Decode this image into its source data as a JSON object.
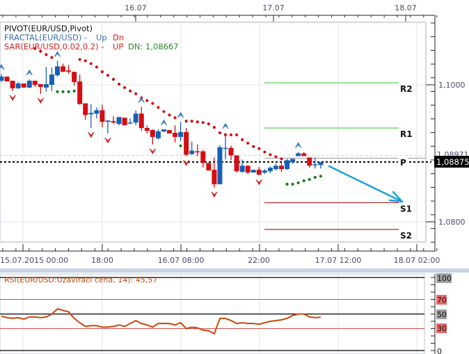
{
  "legend": {
    "pivot": "PIVOT(EUR/USD,Pivot)",
    "fractal": "FRACTAL(EUR/USD) -",
    "fractal_up": "Up",
    "fractal_dn": "Dn",
    "sar": "SAR(EUR/USD,0.02,0.2) -",
    "sar_up": "UP",
    "sar_dn": "DN: 1,08667"
  },
  "top_axis": [
    "16.07",
    "17.07",
    "18.07"
  ],
  "bottom_axis": [
    "15.07.2015 00:00",
    "18:00",
    "16.07 08:00",
    "22:00",
    "17.07 12:00",
    "18.07 02:00"
  ],
  "price_axis": {
    "labels": [
      "1,1000",
      "1,0800"
    ],
    "ref_label": "1,08971",
    "current_label": "1,08875"
  },
  "pivot_labels": {
    "R2": "R2",
    "R1": "R1",
    "P": "P",
    "S1": "S1",
    "S2": "S2"
  },
  "rsi": {
    "title": "RSI(EUR/USD:Uzavírací cena, 14): 45,57",
    "levels": [
      "100",
      "70",
      "50",
      "30",
      "0"
    ]
  },
  "colors": {
    "up": "#1560b8",
    "down": "#d40d12",
    "sar_down": "#d40d12",
    "sar_up": "#1a7a1a",
    "rsi": "#c8480a",
    "arrow": "#1aa0dc",
    "r_lines": "#44cc44",
    "s_lines": "#b02020"
  },
  "chart_data": [
    {
      "type": "candlestick",
      "title": "EUR/USD",
      "ylim": [
        1.077,
        1.1105
      ],
      "ohlc": [
        [
          1.1006,
          1.1016,
          1.1004,
          1.1012
        ],
        [
          1.1012,
          1.1012,
          1.1005,
          1.1005
        ],
        [
          1.1006,
          1.1006,
          1.0991,
          1.0995
        ],
        [
          1.0995,
          1.1004,
          1.0994,
          1.1002
        ],
        [
          1.1002,
          1.1002,
          1.0996,
          1.0996
        ],
        [
          1.0996,
          1.1008,
          1.0995,
          1.1006
        ],
        [
          1.1006,
          1.1006,
          1.0997,
          1.1
        ],
        [
          1.1001,
          1.1001,
          1.0987,
          1.0997
        ],
        [
          1.0996,
          1.1026,
          1.099,
          1.1001
        ],
        [
          1.1,
          1.1025,
          1.0991,
          1.1015
        ],
        [
          1.1014,
          1.1035,
          1.1012,
          1.1027
        ],
        [
          1.1027,
          1.1031,
          1.1019,
          1.1019
        ],
        [
          1.1021,
          1.1029,
          1.1016,
          1.1019
        ],
        [
          1.1019,
          1.1019,
          1.0999,
          1.1004
        ],
        [
          1.1005,
          1.1015,
          1.0971,
          1.0972
        ],
        [
          1.0973,
          1.0973,
          1.0949,
          1.0956
        ],
        [
          1.0957,
          1.0972,
          1.0937,
          1.0959
        ],
        [
          1.0958,
          1.0967,
          1.0951,
          1.0963
        ],
        [
          1.0963,
          1.0971,
          1.0938,
          1.0946
        ],
        [
          1.0946,
          1.0948,
          1.0929,
          1.0948
        ],
        [
          1.0947,
          1.0954,
          1.0943,
          1.0945
        ],
        [
          1.0943,
          1.0953,
          1.0941,
          1.0953
        ],
        [
          1.0952,
          1.0952,
          1.0941,
          1.0941
        ],
        [
          1.0944,
          1.0951,
          1.0943,
          1.0945
        ],
        [
          1.0945,
          1.0963,
          1.0941,
          1.0958
        ],
        [
          1.0958,
          1.0968,
          1.0933,
          1.0937
        ],
        [
          1.0937,
          1.0941,
          1.0929,
          1.0933
        ],
        [
          1.0934,
          1.0935,
          1.0913,
          1.0924
        ],
        [
          1.0922,
          1.0935,
          1.092,
          1.0932
        ],
        [
          1.0932,
          1.0935,
          1.0931,
          1.0935
        ],
        [
          1.0934,
          1.0934,
          1.0929,
          1.0929
        ],
        [
          1.093,
          1.0941,
          1.0916,
          1.0924
        ],
        [
          1.0924,
          1.0946,
          1.0918,
          1.0931
        ],
        [
          1.0931,
          1.0937,
          1.0896,
          1.0898
        ],
        [
          1.0899,
          1.0917,
          1.0898,
          1.0904
        ],
        [
          1.0903,
          1.0913,
          1.0896,
          1.0902
        ],
        [
          1.0903,
          1.0905,
          1.0879,
          1.0886
        ],
        [
          1.0886,
          1.0886,
          1.0875,
          1.0875
        ],
        [
          1.0876,
          1.0894,
          1.085,
          1.0855
        ],
        [
          1.0855,
          1.0912,
          1.0855,
          1.0909
        ],
        [
          1.0908,
          1.093,
          1.0891,
          1.0908
        ],
        [
          1.0908,
          1.0911,
          1.089,
          1.0897
        ],
        [
          1.0897,
          1.0897,
          1.0872,
          1.0874
        ],
        [
          1.0873,
          1.0891,
          1.0872,
          1.0882
        ],
        [
          1.0882,
          1.0882,
          1.087,
          1.0872
        ],
        [
          1.0872,
          1.0876,
          1.0872,
          1.0876
        ],
        [
          1.0876,
          1.088,
          1.0868,
          1.0869
        ],
        [
          1.0872,
          1.0877,
          1.087,
          1.0875
        ],
        [
          1.0874,
          1.0881,
          1.0871,
          1.0879
        ],
        [
          1.0877,
          1.0885,
          1.0875,
          1.0882
        ],
        [
          1.0882,
          1.0886,
          1.0873,
          1.0877
        ],
        [
          1.0877,
          1.0892,
          1.0876,
          1.089
        ],
        [
          1.0887,
          1.0892,
          1.0885,
          1.0892
        ],
        [
          1.0896,
          1.0902,
          1.0896,
          1.09
        ],
        [
          1.09,
          1.0902,
          1.0896,
          1.0896
        ],
        [
          1.0894,
          1.0894,
          1.0879,
          1.0882
        ],
        [
          1.0883,
          1.0894,
          1.0878,
          1.0884
        ],
        [
          1.0883,
          1.0887,
          1.0878,
          1.0887
        ]
      ],
      "sar": [
        [
          6,
          1.1053,
          "dn"
        ],
        [
          7,
          1.1049,
          "dn"
        ],
        [
          8,
          1.1044,
          "dn"
        ],
        [
          9,
          1.104,
          "dn"
        ],
        [
          10,
          1.099,
          "up"
        ],
        [
          11,
          1.099,
          "up"
        ],
        [
          12,
          1.099,
          "up"
        ],
        [
          13,
          1.0991,
          "up"
        ],
        [
          14,
          1.1037,
          "dn"
        ],
        [
          15,
          1.1035,
          "dn"
        ],
        [
          16,
          1.1031,
          "dn"
        ],
        [
          17,
          1.1026,
          "dn"
        ],
        [
          18,
          1.1019,
          "dn"
        ],
        [
          19,
          1.1014,
          "dn"
        ],
        [
          20,
          1.1008,
          "dn"
        ],
        [
          21,
          1.1001,
          "dn"
        ],
        [
          22,
          1.0996,
          "dn"
        ],
        [
          23,
          1.0991,
          "dn"
        ],
        [
          24,
          1.0987,
          "dn"
        ],
        [
          25,
          1.0981,
          "dn"
        ],
        [
          26,
          1.0977,
          "dn"
        ],
        [
          27,
          1.0973,
          "dn"
        ],
        [
          28,
          1.0967,
          "dn"
        ],
        [
          29,
          1.0961,
          "dn"
        ],
        [
          30,
          1.0956,
          "dn"
        ],
        [
          31,
          1.0952,
          "dn"
        ],
        [
          32,
          1.0911,
          "up"
        ],
        [
          33,
          1.0947,
          "dn"
        ],
        [
          34,
          1.0947,
          "dn"
        ],
        [
          35,
          1.0946,
          "dn"
        ],
        [
          36,
          1.0945,
          "dn"
        ],
        [
          37,
          1.0943,
          "dn"
        ],
        [
          38,
          1.0938,
          "dn"
        ],
        [
          39,
          1.093,
          "dn"
        ],
        [
          40,
          1.0927,
          "dn"
        ],
        [
          41,
          1.0927,
          "dn"
        ],
        [
          42,
          1.0927,
          "dn"
        ],
        [
          43,
          1.092,
          "dn"
        ],
        [
          44,
          1.0915,
          "dn"
        ],
        [
          45,
          1.091,
          "dn"
        ],
        [
          46,
          1.0907,
          "dn"
        ],
        [
          47,
          1.0902,
          "dn"
        ],
        [
          48,
          1.0898,
          "dn"
        ],
        [
          49,
          1.0895,
          "dn"
        ],
        [
          50,
          1.0892,
          "dn"
        ],
        [
          51,
          1.0855,
          "up"
        ],
        [
          52,
          1.0855,
          "up"
        ],
        [
          53,
          1.0857,
          "up"
        ],
        [
          54,
          1.086,
          "up"
        ],
        [
          55,
          1.0862,
          "up"
        ],
        [
          56,
          1.0865,
          "up"
        ],
        [
          57,
          1.08667,
          "up"
        ]
      ],
      "fractals_up": [
        0,
        5,
        10,
        25,
        29,
        32,
        40,
        53
      ],
      "fractals_down": [
        2,
        7,
        16,
        19,
        27,
        33,
        38,
        46
      ],
      "pivot": {
        "R2": 1.1003,
        "R1": 1.0937,
        "P": 1.08875,
        "S1": 1.0828,
        "S2": 1.0789
      },
      "reference_level": 1.08971,
      "current_price": 1.08875,
      "y_ticks": [
        1.1,
        1.08
      ]
    },
    {
      "type": "line",
      "title": "RSI(EUR/USD:Uzavírací cena, 14): 45,57",
      "ylim": [
        0,
        100
      ],
      "levels": [
        100,
        70,
        50,
        30,
        0
      ],
      "values": [
        47,
        45,
        44,
        45,
        43,
        46,
        46,
        45,
        46,
        50,
        57,
        55,
        53,
        44,
        38,
        33,
        34,
        34,
        32,
        32,
        33,
        35,
        33,
        37,
        41,
        37,
        35,
        32,
        37,
        37,
        37,
        35,
        38,
        30,
        32,
        31,
        28,
        27,
        23,
        44,
        44,
        41,
        37,
        38,
        37,
        37,
        36,
        38,
        40,
        41,
        42,
        44,
        48,
        50,
        50,
        46,
        45,
        45.57
      ]
    }
  ]
}
